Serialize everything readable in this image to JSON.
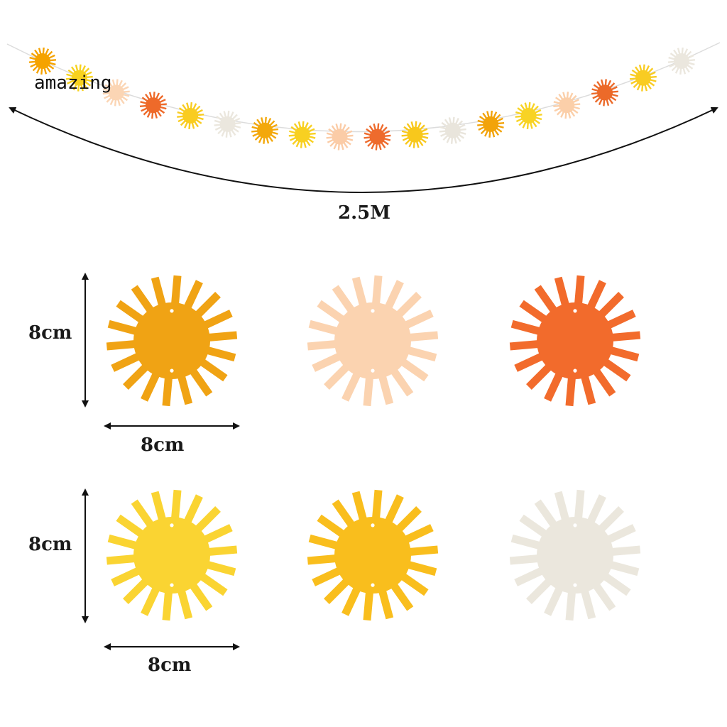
{
  "watermark": "amazing",
  "garland": {
    "length_label": "2.5M",
    "sun_colors": [
      "#f5a300",
      "#f7d21e",
      "#fbd5b4",
      "#ee6a2a",
      "#f9cc20",
      "#ebe7de",
      "#f3a80b",
      "#f8d021",
      "#fbcca7",
      "#ee6b2d",
      "#f8c81c",
      "#e9e5dc",
      "#f2a30a",
      "#f8d324",
      "#fbcfa9",
      "#ec6a29",
      "#f9cc22",
      "#ebe7de"
    ]
  },
  "dimensions": {
    "row1_height": "8cm",
    "row1_width": "8cm",
    "row2_height": "8cm",
    "row2_width": "8cm"
  },
  "suns": [
    {
      "name": "dark-yellow",
      "color": "#f0a314"
    },
    {
      "name": "peach",
      "color": "#fbd3b0"
    },
    {
      "name": "orange",
      "color": "#f26b2c"
    },
    {
      "name": "light-yellow",
      "color": "#fad432"
    },
    {
      "name": "golden-yellow",
      "color": "#f9be1d"
    },
    {
      "name": "cream",
      "color": "#ebe7dd"
    }
  ]
}
